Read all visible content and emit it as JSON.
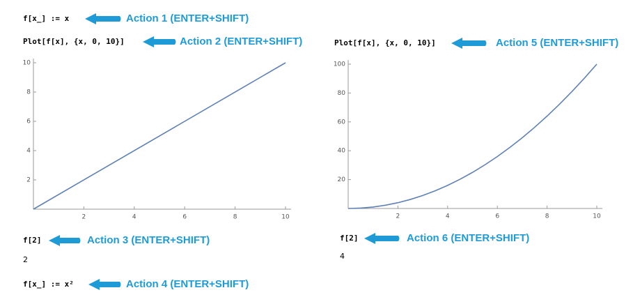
{
  "cells": [
    {
      "input": "f[x_] := x",
      "action": "Action 1 (ENTER+SHIFT)"
    },
    {
      "input": "Plot[f[x], {x, 0, 10}]",
      "action": "Action 2 (ENTER+SHIFT)"
    },
    {
      "input": "f[2]",
      "action": "Action 3 (ENTER+SHIFT)",
      "output": "2"
    },
    {
      "input": "f[x_] := x²",
      "action": "Action 4 (ENTER+SHIFT)"
    },
    {
      "input": "Plot[f[x], {x, 0, 10}]",
      "action": "Action 5 (ENTER+SHIFT)"
    },
    {
      "input": "f[2]",
      "action": "Action 6 (ENTER+SHIFT)",
      "output": "4"
    }
  ],
  "chart_data": [
    {
      "type": "line",
      "color": "#5e81b5",
      "x": [
        0,
        10
      ],
      "values": [
        0,
        10
      ],
      "xlim": [
        0,
        10
      ],
      "ylim": [
        0,
        10
      ],
      "xticks": [
        2,
        4,
        6,
        8,
        10
      ],
      "yticks": [
        2,
        4,
        6,
        8,
        10
      ]
    },
    {
      "type": "line",
      "color": "#5e81b5",
      "x": [
        0,
        0.5,
        1,
        1.5,
        2,
        2.5,
        3,
        3.5,
        4,
        4.5,
        5,
        5.5,
        6,
        6.5,
        7,
        7.5,
        8,
        8.5,
        9,
        9.5,
        10
      ],
      "values": [
        0,
        0.25,
        1,
        2.25,
        4,
        6.25,
        9,
        12.25,
        16,
        20.25,
        25,
        30.25,
        36,
        42.25,
        49,
        56.25,
        64,
        72.25,
        81,
        90.25,
        100
      ],
      "xlim": [
        0,
        10
      ],
      "ylim": [
        0,
        100
      ],
      "xticks": [
        2,
        4,
        6,
        8,
        10
      ],
      "yticks": [
        20,
        40,
        60,
        80,
        100
      ]
    }
  ]
}
